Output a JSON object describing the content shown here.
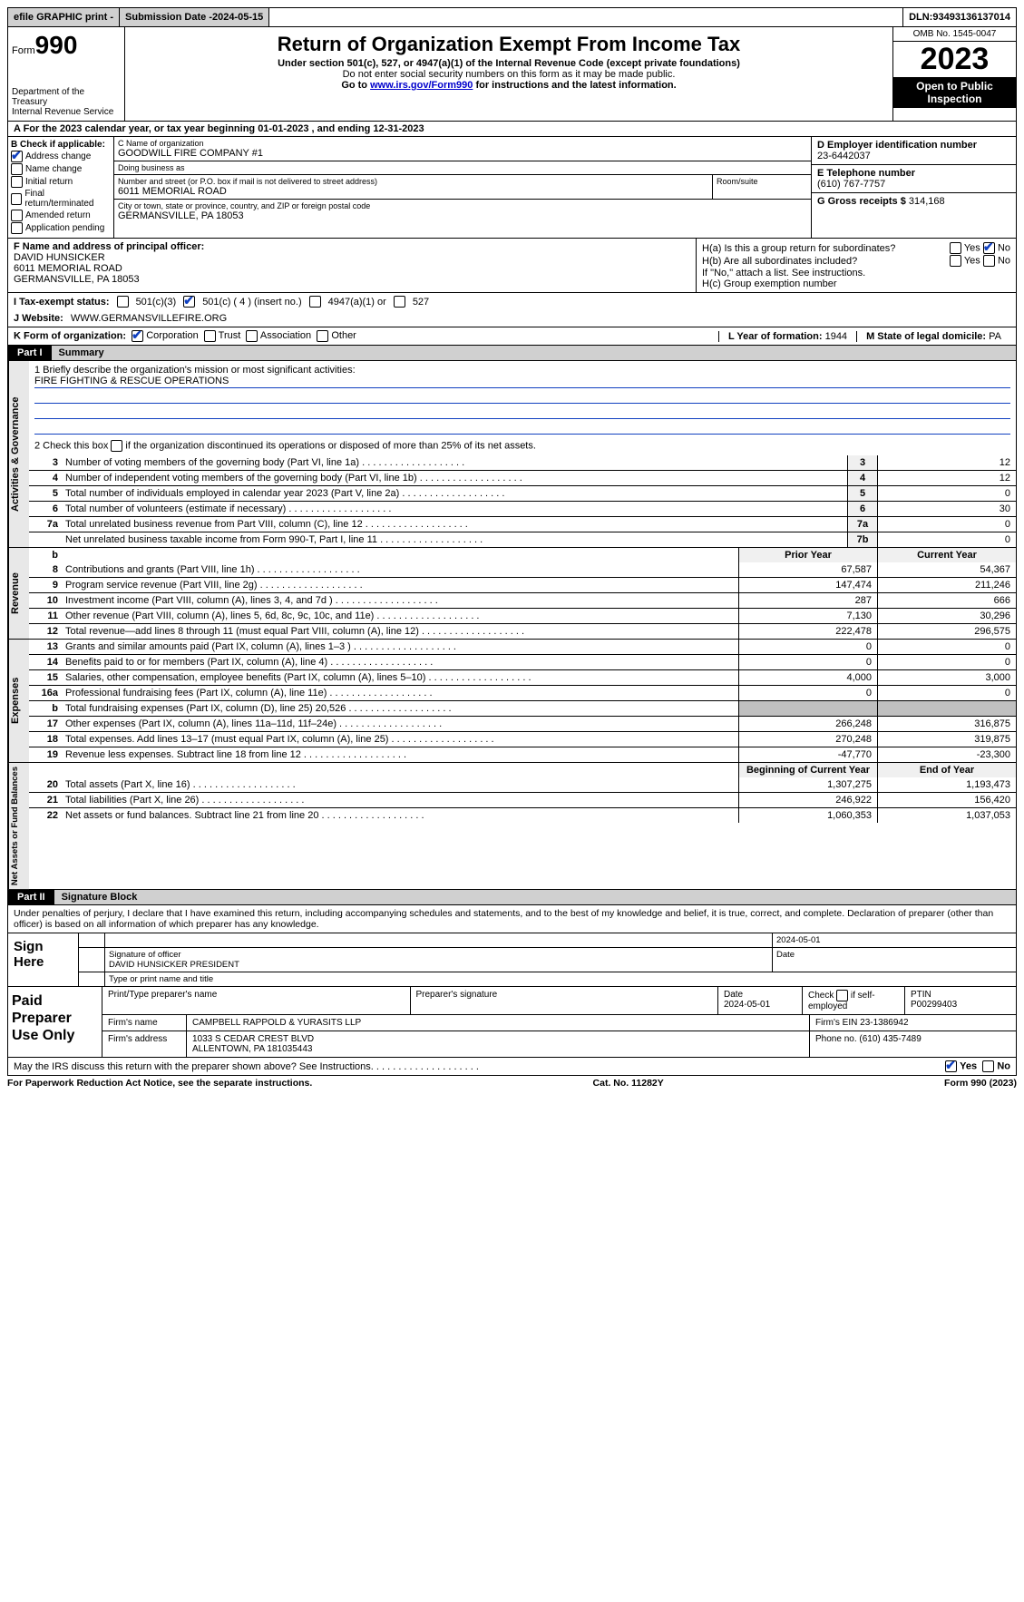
{
  "top": {
    "efile": "efile GRAPHIC print -",
    "submission_label": "Submission Date - ",
    "submission_date": "2024-05-15",
    "dln_label": "DLN: ",
    "dln": "93493136137014"
  },
  "header": {
    "form_prefix": "Form",
    "form_number": "990",
    "dept": "Department of the Treasury\nInternal Revenue Service",
    "title": "Return of Organization Exempt From Income Tax",
    "subtitle": "Under section 501(c), 527, or 4947(a)(1) of the Internal Revenue Code (except private foundations)",
    "ssn_warn": "Do not enter social security numbers on this form as it may be made public.",
    "goto_prefix": "Go to ",
    "goto_link": "www.irs.gov/Form990",
    "goto_suffix": " for instructions and the latest information.",
    "omb": "OMB No. 1545-0047",
    "year": "2023",
    "inspect": "Open to Public Inspection"
  },
  "row_a": "A For the 2023 calendar year, or tax year beginning 01-01-2023   , and ending 12-31-2023",
  "box_b": {
    "label": "B Check if applicable:",
    "opts": [
      "Address change",
      "Name change",
      "Initial return",
      "Final return/terminated",
      "Amended return",
      "Application pending"
    ],
    "checked": [
      true,
      false,
      false,
      false,
      false,
      false
    ]
  },
  "box_c": {
    "name_lbl": "C Name of organization",
    "name": "GOODWILL FIRE COMPANY #1",
    "dba_lbl": "Doing business as",
    "dba": "",
    "addr_lbl": "Number and street (or P.O. box if mail is not delivered to street address)",
    "room_lbl": "Room/suite",
    "addr": "6011 MEMORIAL ROAD",
    "city_lbl": "City or town, state or province, country, and ZIP or foreign postal code",
    "city": "GERMANSVILLE, PA   18053"
  },
  "box_d": {
    "lbl": "D Employer identification number",
    "val": "23-6442037"
  },
  "box_e": {
    "lbl": "E Telephone number",
    "val": "(610) 767-7757"
  },
  "box_g": {
    "lbl": "G Gross receipts $ ",
    "val": "314,168"
  },
  "box_f": {
    "lbl": "F  Name and address of principal officer:",
    "name": "DAVID HUNSICKER",
    "addr1": "6011 MEMORIAL ROAD",
    "addr2": "GERMANSVILLE, PA   18053"
  },
  "box_h": {
    "ha_lbl": "H(a)  Is this a group return for subordinates?",
    "hb_lbl": "H(b)  Are all subordinates included?",
    "hb_note": "If \"No,\" attach a list. See instructions.",
    "hc_lbl": "H(c)  Group exemption number",
    "yes": "Yes",
    "no": "No",
    "ha_yes": false,
    "ha_no": true,
    "hb_yes": false,
    "hb_no": false
  },
  "row_i": {
    "lbl": "I   Tax-exempt status:",
    "o1": "501(c)(3)",
    "o2": "501(c) ( 4 ) (insert no.)",
    "o3": "4947(a)(1) or",
    "o4": "527",
    "checked": 2
  },
  "row_j": {
    "lbl": "J   Website:",
    "val": "WWW.GERMANSVILLEFIRE.ORG"
  },
  "row_k": {
    "lbl": "K Form of organization:",
    "opts": [
      "Corporation",
      "Trust",
      "Association",
      "Other"
    ],
    "checked": [
      true,
      false,
      false,
      false
    ],
    "l_lbl": "L Year of formation: ",
    "l_val": "1944",
    "m_lbl": "M State of legal domicile: ",
    "m_val": "PA"
  },
  "part1": {
    "tag": "Part I",
    "title": "Summary"
  },
  "mission": {
    "q": "1   Briefly describe the organization's mission or most significant activities:",
    "a": "FIRE FIGHTING & RESCUE OPERATIONS",
    "q2_pre": "2   Check this box ",
    "q2_post": " if the organization discontinued its operations or disposed of more than 25% of its net assets."
  },
  "side_labels": {
    "gov": "Activities & Governance",
    "rev": "Revenue",
    "exp": "Expenses",
    "net": "Net Assets or Fund Balances"
  },
  "gov_lines": [
    {
      "n": "3",
      "t": "Number of voting members of the governing body (Part VI, line 1a)",
      "box": "3",
      "v": "12"
    },
    {
      "n": "4",
      "t": "Number of independent voting members of the governing body (Part VI, line 1b)",
      "box": "4",
      "v": "12"
    },
    {
      "n": "5",
      "t": "Total number of individuals employed in calendar year 2023 (Part V, line 2a)",
      "box": "5",
      "v": "0"
    },
    {
      "n": "6",
      "t": "Total number of volunteers (estimate if necessary)",
      "box": "6",
      "v": "30"
    },
    {
      "n": "7a",
      "t": "Total unrelated business revenue from Part VIII, column (C), line 12",
      "box": "7a",
      "v": "0"
    },
    {
      "n": "",
      "t": "Net unrelated business taxable income from Form 990-T, Part I, line 11",
      "box": "7b",
      "v": "0"
    }
  ],
  "col_hdrs": {
    "prior": "Prior Year",
    "current": "Current Year",
    "boy": "Beginning of Current Year",
    "eoy": "End of Year"
  },
  "rev_lines": [
    {
      "n": "8",
      "t": "Contributions and grants (Part VIII, line 1h)",
      "p": "67,587",
      "c": "54,367"
    },
    {
      "n": "9",
      "t": "Program service revenue (Part VIII, line 2g)",
      "p": "147,474",
      "c": "211,246"
    },
    {
      "n": "10",
      "t": "Investment income (Part VIII, column (A), lines 3, 4, and 7d )",
      "p": "287",
      "c": "666"
    },
    {
      "n": "11",
      "t": "Other revenue (Part VIII, column (A), lines 5, 6d, 8c, 9c, 10c, and 11e)",
      "p": "7,130",
      "c": "30,296"
    },
    {
      "n": "12",
      "t": "Total revenue—add lines 8 through 11 (must equal Part VIII, column (A), line 12)",
      "p": "222,478",
      "c": "296,575"
    }
  ],
  "exp_lines": [
    {
      "n": "13",
      "t": "Grants and similar amounts paid (Part IX, column (A), lines 1–3 )",
      "p": "0",
      "c": "0"
    },
    {
      "n": "14",
      "t": "Benefits paid to or for members (Part IX, column (A), line 4)",
      "p": "0",
      "c": "0"
    },
    {
      "n": "15",
      "t": "Salaries, other compensation, employee benefits (Part IX, column (A), lines 5–10)",
      "p": "4,000",
      "c": "3,000"
    },
    {
      "n": "16a",
      "t": "Professional fundraising fees (Part IX, column (A), line 11e)",
      "p": "0",
      "c": "0"
    },
    {
      "n": "b",
      "t": "Total fundraising expenses (Part IX, column (D), line 25) 20,526",
      "p": "",
      "c": "",
      "shade": true
    },
    {
      "n": "17",
      "t": "Other expenses (Part IX, column (A), lines 11a–11d, 11f–24e)",
      "p": "266,248",
      "c": "316,875"
    },
    {
      "n": "18",
      "t": "Total expenses. Add lines 13–17 (must equal Part IX, column (A), line 25)",
      "p": "270,248",
      "c": "319,875"
    },
    {
      "n": "19",
      "t": "Revenue less expenses. Subtract line 18 from line 12",
      "p": "-47,770",
      "c": "-23,300"
    }
  ],
  "net_lines": [
    {
      "n": "20",
      "t": "Total assets (Part X, line 16)",
      "p": "1,307,275",
      "c": "1,193,473"
    },
    {
      "n": "21",
      "t": "Total liabilities (Part X, line 26)",
      "p": "246,922",
      "c": "156,420"
    },
    {
      "n": "22",
      "t": "Net assets or fund balances. Subtract line 21 from line 20",
      "p": "1,060,353",
      "c": "1,037,053"
    }
  ],
  "part2": {
    "tag": "Part II",
    "title": "Signature Block"
  },
  "perjury": "Under penalties of perjury, I declare that I have examined this return, including accompanying schedules and statements, and to the best of my knowledge and belief, it is true, correct, and complete. Declaration of preparer (other than officer) is based on all information of which preparer has any knowledge.",
  "sign": {
    "left": "Sign Here",
    "date": "2024-05-01",
    "sig_lbl": "Signature of officer",
    "date_lbl": "Date",
    "officer": "DAVID HUNSICKER  PRESIDENT",
    "type_lbl": "Type or print name and title"
  },
  "prep": {
    "left": "Paid Preparer Use Only",
    "h1": "Print/Type preparer's name",
    "h2": "Preparer's signature",
    "h3_lbl": "Date",
    "h3": "2024-05-01",
    "h4_lbl": "Check         if self-employed",
    "h4_chk": false,
    "h5_lbl": "PTIN",
    "h5": "P00299403",
    "firm_lbl": "Firm's name",
    "firm": "CAMPBELL RAPPOLD & YURASITS LLP",
    "ein_lbl": "Firm's EIN",
    "ein": "23-1386942",
    "addr_lbl": "Firm's address",
    "addr1": "1033 S CEDAR CREST BLVD",
    "addr2": "ALLENTOWN, PA   181035443",
    "phone_lbl": "Phone no.",
    "phone": "(610) 435-7489"
  },
  "discuss": {
    "q": "May the IRS discuss this return with the preparer shown above? See Instructions.",
    "yes": "Yes",
    "no": "No",
    "yes_chk": true,
    "no_chk": false
  },
  "footer": {
    "left": "For Paperwork Reduction Act Notice, see the separate instructions.",
    "mid": "Cat. No. 11282Y",
    "right": "Form 990 (2023)"
  }
}
